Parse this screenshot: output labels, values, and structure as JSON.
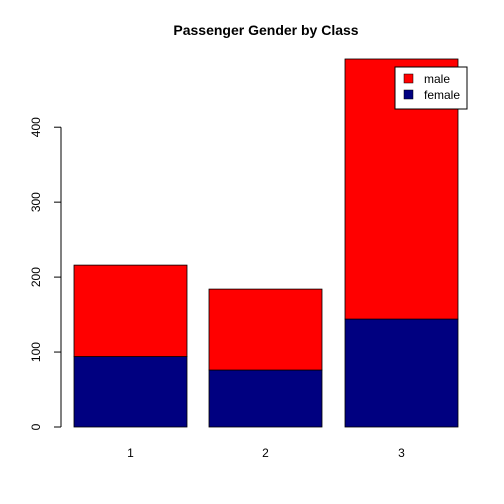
{
  "chart_data": {
    "type": "bar",
    "stacked": true,
    "title": "Passenger Gender by Class",
    "xlabel": "",
    "ylabel": "",
    "categories": [
      "1",
      "2",
      "3"
    ],
    "series": [
      {
        "name": "female",
        "color": "#000080",
        "values": [
          94,
          76,
          144
        ]
      },
      {
        "name": "male",
        "color": "#ff0000",
        "values": [
          122,
          108,
          347
        ]
      }
    ],
    "ylim": [
      0,
      491
    ],
    "yticks": [
      0,
      100,
      200,
      300,
      400
    ],
    "legend": {
      "position": "top-right",
      "entries": [
        "male",
        "female"
      ]
    },
    "grid": false
  }
}
